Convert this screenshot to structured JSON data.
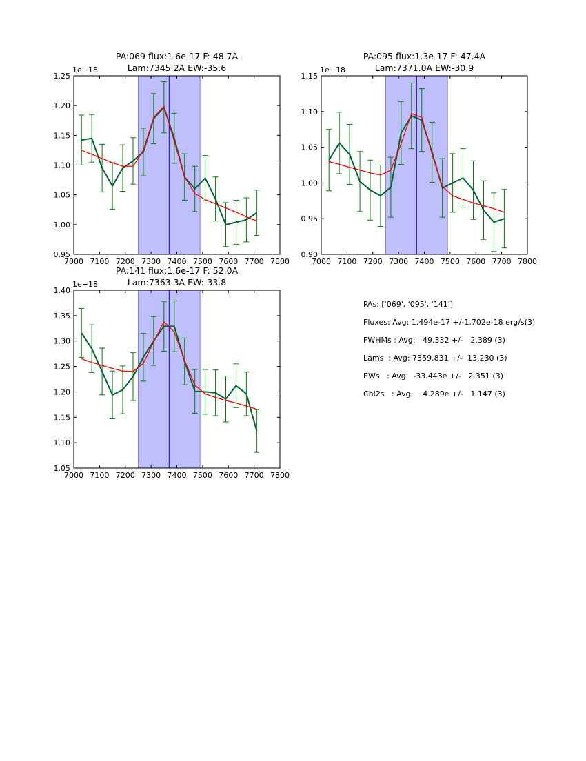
{
  "chart_data": [
    {
      "type": "line",
      "title_line1": "PA:069 flux:1.6e-17 F: 48.7A",
      "title_line2": "Lam:7345.2A EW:-35.6",
      "offset_label": "1e−18",
      "xlim": [
        7000,
        7800
      ],
      "ylim": [
        0.95,
        1.25
      ],
      "xticks": [
        7000,
        7100,
        7200,
        7300,
        7400,
        7500,
        7600,
        7700,
        7800
      ],
      "yticks": [
        "0.95",
        "1.00",
        "1.05",
        "1.10",
        "1.15",
        "1.20",
        "1.25"
      ],
      "span": [
        7250,
        7490
      ],
      "vline": 7370,
      "x": [
        7030,
        7070,
        7110,
        7150,
        7190,
        7230,
        7270,
        7310,
        7350,
        7390,
        7430,
        7470,
        7510,
        7550,
        7590,
        7630,
        7670,
        7710
      ],
      "series": [
        {
          "name": "data",
          "color": "#006633",
          "values": [
            1.142,
            1.145,
            1.095,
            1.065,
            1.095,
            1.107,
            1.122,
            1.178,
            1.197,
            1.145,
            1.08,
            1.06,
            1.078,
            1.043,
            1.0,
            1.004,
            1.008,
            1.02
          ],
          "errors": [
            0.042,
            0.04,
            0.04,
            0.039,
            0.039,
            0.039,
            0.04,
            0.042,
            0.043,
            0.042,
            0.039,
            0.038,
            0.038,
            0.037,
            0.037,
            0.037,
            0.037,
            0.038
          ]
        },
        {
          "name": "fit",
          "color": "#ff0000",
          "values": [
            1.125,
            1.118,
            1.111,
            1.104,
            1.098,
            1.098,
            1.125,
            1.18,
            1.199,
            1.14,
            1.08,
            1.052,
            1.042,
            1.035,
            1.028,
            1.021,
            1.013,
            1.006
          ]
        }
      ]
    },
    {
      "type": "line",
      "title_line1": "PA:095 flux:1.3e-17 F: 47.4A",
      "title_line2": "Lam:7371.0A EW:-30.9",
      "offset_label": "1e−18",
      "xlim": [
        7000,
        7800
      ],
      "ylim": [
        0.9,
        1.15
      ],
      "xticks": [
        7000,
        7100,
        7200,
        7300,
        7400,
        7500,
        7600,
        7700,
        7800
      ],
      "yticks": [
        "0.90",
        "0.95",
        "1.00",
        "1.05",
        "1.10",
        "1.15"
      ],
      "span": [
        7250,
        7490
      ],
      "vline": 7370,
      "x": [
        7030,
        7070,
        7110,
        7150,
        7190,
        7230,
        7270,
        7310,
        7350,
        7390,
        7430,
        7470,
        7510,
        7550,
        7590,
        7630,
        7670,
        7710
      ],
      "series": [
        {
          "name": "data",
          "color": "#006633",
          "values": [
            1.032,
            1.056,
            1.04,
            1.002,
            0.99,
            0.982,
            0.994,
            1.07,
            1.094,
            1.088,
            1.043,
            0.993,
            1.0,
            1.007,
            0.99,
            0.962,
            0.945,
            0.95
          ],
          "errors": [
            0.043,
            0.043,
            0.042,
            0.042,
            0.042,
            0.043,
            0.042,
            0.044,
            0.046,
            0.044,
            0.042,
            0.041,
            0.041,
            0.041,
            0.041,
            0.041,
            0.041,
            0.041
          ]
        },
        {
          "name": "fit",
          "color": "#ff0000",
          "values": [
            1.03,
            1.026,
            1.022,
            1.018,
            1.014,
            1.011,
            1.018,
            1.055,
            1.097,
            1.092,
            1.04,
            0.995,
            0.982,
            0.977,
            0.972,
            0.968,
            0.964,
            0.959
          ]
        }
      ]
    },
    {
      "type": "line",
      "title_line1": "PA:141 flux:1.6e-17 F: 52.0A",
      "title_line2": "Lam:7363.3A EW:-33.8",
      "offset_label": "1e−18",
      "xlim": [
        7000,
        7800
      ],
      "ylim": [
        1.05,
        1.4
      ],
      "xticks": [
        7000,
        7100,
        7200,
        7300,
        7400,
        7500,
        7600,
        7700,
        7800
      ],
      "yticks": [
        "1.05",
        "1.10",
        "1.15",
        "1.20",
        "1.25",
        "1.30",
        "1.35",
        "1.40"
      ],
      "span": [
        7250,
        7490
      ],
      "vline": 7370,
      "x": [
        7030,
        7070,
        7110,
        7150,
        7190,
        7230,
        7270,
        7310,
        7350,
        7390,
        7430,
        7470,
        7510,
        7550,
        7590,
        7630,
        7670,
        7710
      ],
      "series": [
        {
          "name": "data",
          "color": "#006633",
          "values": [
            1.316,
            1.285,
            1.24,
            1.194,
            1.204,
            1.23,
            1.268,
            1.3,
            1.329,
            1.329,
            1.26,
            1.201,
            1.2,
            1.198,
            1.186,
            1.212,
            1.196,
            1.123
          ],
          "errors": [
            0.048,
            0.047,
            0.046,
            0.047,
            0.047,
            0.047,
            0.047,
            0.048,
            0.049,
            0.05,
            0.046,
            0.043,
            0.044,
            0.045,
            0.045,
            0.043,
            0.043,
            0.042
          ]
        },
        {
          "name": "fit",
          "color": "#ff0000",
          "values": [
            1.265,
            1.258,
            1.252,
            1.246,
            1.241,
            1.24,
            1.256,
            1.298,
            1.338,
            1.318,
            1.262,
            1.213,
            1.196,
            1.189,
            1.183,
            1.178,
            1.172,
            1.166
          ]
        }
      ]
    }
  ],
  "summary": {
    "pas": "PAs: ['069', '095', '141']",
    "fluxes": "Fluxes: Avg: 1.494e-17 +/-1.702e-18 erg/s(3)",
    "fwhms": "FWHMs : Avg:   49.332 +/-   2.389 (3)",
    "lams": "Lams  : Avg: 7359.831 +/-  13.230 (3)",
    "ews": "EWs   : Avg:  -33.443e +/-   2.351 (3)",
    "chi2s": "Chi2s   : Avg:    4.289e +/-   1.147 (3)"
  },
  "colors": {
    "span": "#bfbffd",
    "span_edge": "#8080c0",
    "vline": "#0000ff",
    "errorbar": "#008000"
  }
}
